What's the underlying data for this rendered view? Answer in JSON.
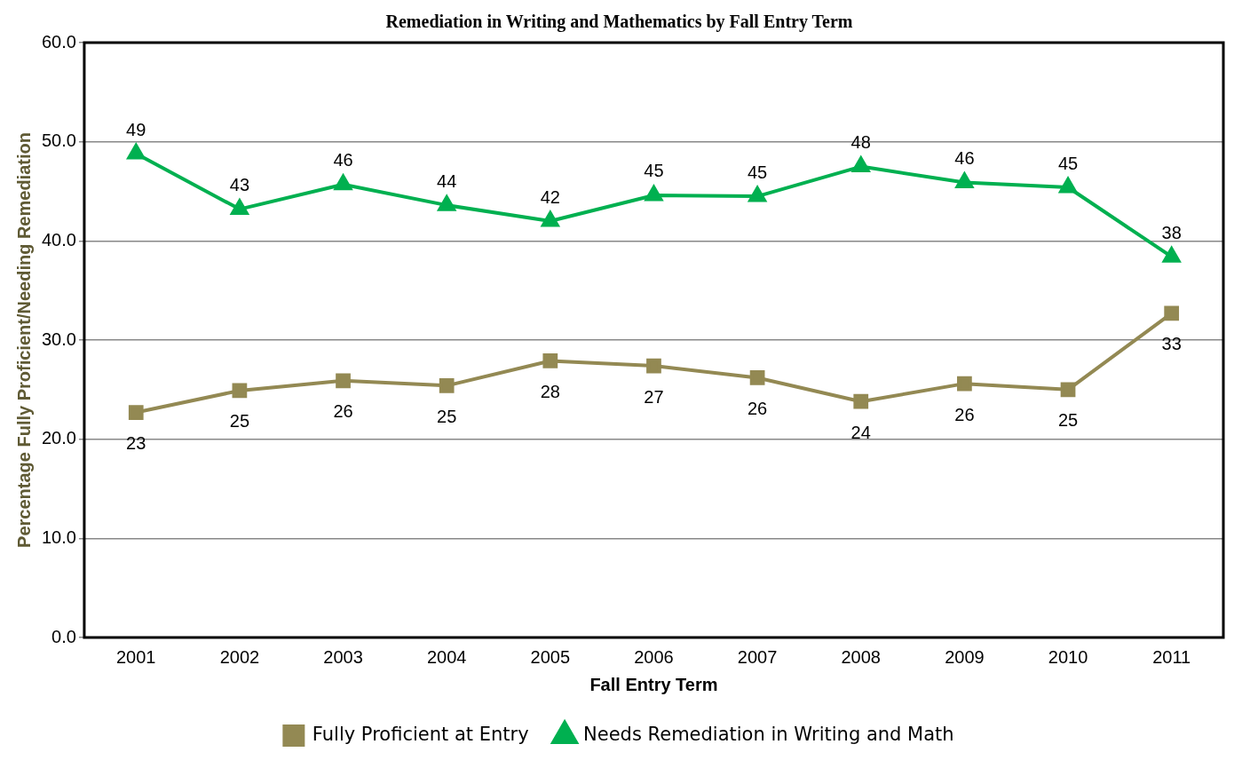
{
  "chart_data": {
    "type": "line",
    "title": "Remediation in Writing and Mathematics by Fall Entry Term",
    "xlabel": "Fall Entry Term",
    "ylabel": "Percentage Fully Proficient/Needing Remediation",
    "categories": [
      "2001",
      "2002",
      "2003",
      "2004",
      "2005",
      "2006",
      "2007",
      "2008",
      "2009",
      "2010",
      "2011"
    ],
    "series": [
      {
        "name": "Fully Proficient at Entry",
        "color": "#938953",
        "marker": "square",
        "values": [
          22.7,
          24.9,
          25.9,
          25.4,
          27.9,
          27.4,
          26.2,
          23.8,
          25.6,
          25.0,
          32.7
        ],
        "value_labels": [
          "23",
          "25",
          "26",
          "25",
          "28",
          "27",
          "26",
          "24",
          "26",
          "25",
          "33"
        ]
      },
      {
        "name": "Needs Remediation in Writing and Math",
        "color": "#00b050",
        "marker": "triangle",
        "values": [
          48.8,
          43.2,
          45.7,
          43.6,
          42.0,
          44.6,
          44.5,
          47.5,
          45.9,
          45.4,
          38.4
        ],
        "value_labels": [
          "49",
          "43",
          "46",
          "44",
          "42",
          "45",
          "45",
          "48",
          "46",
          "45",
          "38"
        ]
      }
    ],
    "ylim": [
      0,
      60
    ],
    "yticks": [
      {
        "value": 0,
        "label": "0.0"
      },
      {
        "value": 10,
        "label": "10.0"
      },
      {
        "value": 20,
        "label": "20.0"
      },
      {
        "value": 30,
        "label": "30.0"
      },
      {
        "value": 40,
        "label": "40.0"
      },
      {
        "value": 50,
        "label": "50.0"
      },
      {
        "value": 60,
        "label": "60.0"
      }
    ],
    "grid": "y",
    "legend": "bottom",
    "line_style": "solid"
  }
}
